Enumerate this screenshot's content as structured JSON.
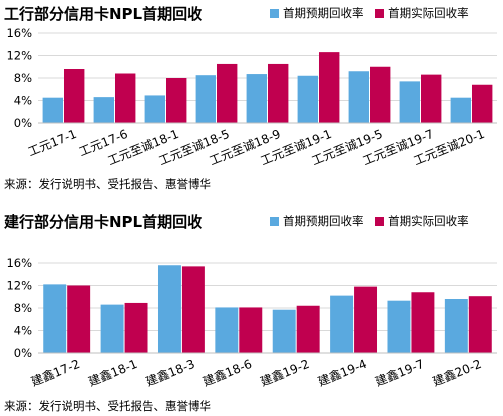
{
  "chart_data": [
    {
      "type": "bar",
      "title": "工行部分信用卡NPL首期回收",
      "categories": [
        "工元17-1",
        "工元17-6",
        "工元至诚18-1",
        "工元至诚18-5",
        "工元至诚18-9",
        "工元至诚19-1",
        "工元至诚19-5",
        "工元至诚19-7",
        "工元至诚20-1"
      ],
      "series": [
        {
          "name": "首期预期回收率",
          "color": "#5aa9df",
          "values": [
            4.5,
            4.6,
            4.9,
            8.5,
            8.7,
            8.4,
            9.2,
            7.4,
            4.5
          ]
        },
        {
          "name": "首期实际回收率",
          "color": "#c0004f",
          "values": [
            9.6,
            8.8,
            8.0,
            10.5,
            10.5,
            12.6,
            10.0,
            8.6,
            6.8
          ]
        }
      ],
      "yticks": [
        "16%",
        "12%",
        "8%",
        "4%",
        "0%"
      ],
      "ylim": [
        0,
        16
      ],
      "legend_position": "top-right",
      "source": "来源：发行说明书、受托报告、惠誉博华"
    },
    {
      "type": "bar",
      "title": "建行部分信用卡NPL首期回收",
      "categories": [
        "建鑫17-2",
        "建鑫18-1",
        "建鑫18-3",
        "建鑫18-6",
        "建鑫19-2",
        "建鑫19-4",
        "建鑫19-7",
        "建鑫20-2"
      ],
      "series": [
        {
          "name": "首期预期回收率",
          "color": "#5aa9df",
          "values": [
            12.2,
            8.6,
            15.6,
            8.1,
            7.7,
            10.2,
            9.3,
            9.6
          ]
        },
        {
          "name": "首期实际回收率",
          "color": "#c0004f",
          "values": [
            12.0,
            8.9,
            15.4,
            8.1,
            8.4,
            11.8,
            10.8,
            10.1
          ]
        }
      ],
      "yticks": [
        "16%",
        "12%",
        "8%",
        "4%",
        "0%"
      ],
      "ylim": [
        0,
        16
      ],
      "legend_position": "top-right",
      "source": "来源：发行说明书、受托报告、惠誉博华"
    }
  ]
}
